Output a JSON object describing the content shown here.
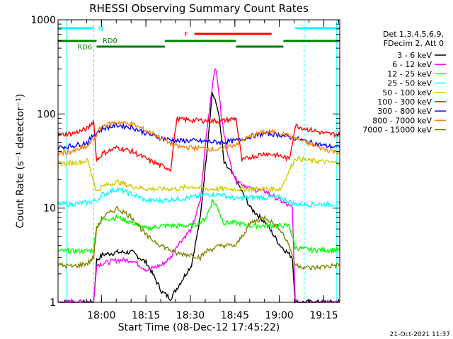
{
  "chart_data": {
    "type": "line",
    "title": "RHESSI Observing Summary Count Rates",
    "xlabel": "Start Time (08-Dec-12 17:45:22)",
    "ylabel": "Count Rate (s⁻¹ detector⁻¹)",
    "yscale": "log",
    "ylim": [
      1,
      1000
    ],
    "xlim_minutes": [
      0,
      95
    ],
    "x_ticks": [
      "18:00",
      "18:15",
      "18:30",
      "18:45",
      "19:00",
      "19:15"
    ],
    "y_ticks": [
      "1",
      "10",
      "100",
      "1000"
    ],
    "legend_header": [
      "Det 1,3,4,5,6,9,",
      "FDecim 2, Att 0"
    ],
    "legend_position": "right",
    "footer_date": "21-Oct-2021 11:37",
    "flag_labels": {
      "night": "N",
      "saa": "RD0",
      "saa2": "RD6",
      "flare": "F"
    },
    "colors": {
      "night": "#00ffff",
      "saa": "#008000",
      "flare": "#ff0000"
    },
    "series": [
      {
        "name": "3 - 6 keV",
        "color": "#000000",
        "x": [
          0,
          12,
          13,
          15,
          20,
          25,
          30,
          35,
          38,
          40,
          45,
          48,
          50,
          52,
          54,
          55,
          56,
          58,
          60,
          62,
          65,
          70,
          75,
          79,
          80,
          85,
          90,
          95
        ],
        "y": [
          1,
          1,
          2.8,
          3.2,
          3.4,
          3.4,
          2.6,
          1.3,
          1.1,
          1.4,
          2.5,
          8,
          35,
          170,
          110,
          60,
          30,
          25,
          20,
          15,
          10,
          7,
          4,
          3,
          1,
          1,
          1,
          1
        ]
      },
      {
        "name": "6 - 12 keV",
        "color": "#ff00ff",
        "x": [
          0,
          12,
          13,
          20,
          25,
          30,
          35,
          38,
          40,
          45,
          48,
          50,
          52,
          53,
          54,
          55,
          56,
          58,
          60,
          65,
          70,
          75,
          79,
          80,
          85,
          90,
          95
        ],
        "y": [
          1,
          1,
          2.5,
          2.8,
          2.8,
          2.2,
          2.5,
          3,
          4,
          6,
          12,
          60,
          200,
          320,
          200,
          100,
          60,
          30,
          20,
          16,
          15,
          12,
          10,
          1,
          1,
          1,
          1
        ]
      },
      {
        "name": "12 - 25 keV",
        "color": "#00ff00",
        "x": [
          0,
          5,
          10,
          12,
          13,
          15,
          20,
          25,
          30,
          35,
          40,
          45,
          48,
          50,
          52,
          54,
          55,
          56,
          60,
          65,
          70,
          75,
          78,
          80,
          85,
          90,
          95
        ],
        "y": [
          3.5,
          3.5,
          3.5,
          3.6,
          6.5,
          7.5,
          8,
          7,
          6,
          6.5,
          6.5,
          6.5,
          7,
          8,
          12,
          10,
          8,
          7,
          7,
          6.5,
          6.5,
          6.5,
          6.5,
          3.8,
          3.6,
          3.6,
          3.6
        ]
      },
      {
        "name": "25 - 50 keV",
        "color": "#00ffff",
        "x": [
          0,
          5,
          10,
          13,
          15,
          20,
          25,
          30,
          35,
          40,
          45,
          50,
          55,
          60,
          65,
          70,
          75,
          80,
          85,
          90,
          95
        ],
        "y": [
          11,
          11,
          11.5,
          12,
          14,
          16,
          14,
          12,
          12,
          12.5,
          13,
          14,
          14,
          12.5,
          13,
          13,
          13,
          11,
          11,
          11,
          11
        ]
      },
      {
        "name": "50 - 100 keV",
        "color": "#cccc00",
        "x": [
          0,
          5,
          10,
          13,
          15,
          20,
          25,
          30,
          35,
          40,
          45,
          50,
          55,
          60,
          65,
          70,
          75,
          80,
          85,
          90,
          95
        ],
        "y": [
          30,
          30,
          32,
          15,
          17,
          19,
          17,
          16,
          16,
          16,
          17,
          16,
          16,
          16,
          16,
          16,
          16,
          34,
          32,
          31,
          30
        ]
      },
      {
        "name": "100 - 300 keV",
        "color": "#ff0000",
        "x": [
          0,
          5,
          10,
          12,
          13,
          15,
          20,
          25,
          30,
          35,
          38,
          40,
          45,
          50,
          55,
          60,
          62,
          65,
          70,
          75,
          78,
          80,
          85,
          90,
          95
        ],
        "y": [
          60,
          62,
          70,
          85,
          32,
          38,
          44,
          40,
          33,
          28,
          26,
          88,
          86,
          85,
          84,
          90,
          32,
          35,
          38,
          36,
          33,
          75,
          68,
          62,
          60
        ]
      },
      {
        "name": "300 - 800 keV",
        "color": "#0000ff",
        "x": [
          0,
          5,
          10,
          12,
          15,
          20,
          25,
          30,
          35,
          40,
          45,
          50,
          55,
          60,
          65,
          70,
          75,
          80,
          85,
          90,
          95
        ],
        "y": [
          44,
          46,
          50,
          60,
          70,
          76,
          72,
          62,
          55,
          52,
          52,
          51,
          50,
          52,
          58,
          62,
          60,
          55,
          50,
          46,
          44
        ]
      },
      {
        "name": "800 - 7000 keV",
        "color": "#ff8000",
        "x": [
          0,
          5,
          10,
          12,
          15,
          20,
          25,
          30,
          35,
          40,
          45,
          50,
          55,
          60,
          65,
          70,
          75,
          80,
          85,
          90,
          95
        ],
        "y": [
          38,
          40,
          45,
          55,
          75,
          82,
          78,
          66,
          55,
          45,
          44,
          43,
          42,
          48,
          58,
          65,
          63,
          55,
          48,
          42,
          39
        ]
      },
      {
        "name": "7000 - 15000 keV",
        "color": "#808000",
        "x": [
          0,
          5,
          10,
          12,
          13,
          15,
          20,
          25,
          30,
          35,
          40,
          45,
          48,
          50,
          55,
          60,
          62,
          65,
          70,
          75,
          78,
          80,
          85,
          90,
          95
        ],
        "y": [
          2.5,
          2.4,
          2.6,
          3,
          6,
          8,
          10,
          8,
          5,
          4,
          3.3,
          3.2,
          3,
          3.5,
          4,
          4,
          5,
          7,
          8,
          6,
          4,
          2.5,
          2.3,
          2.4,
          2.5
        ]
      }
    ]
  }
}
